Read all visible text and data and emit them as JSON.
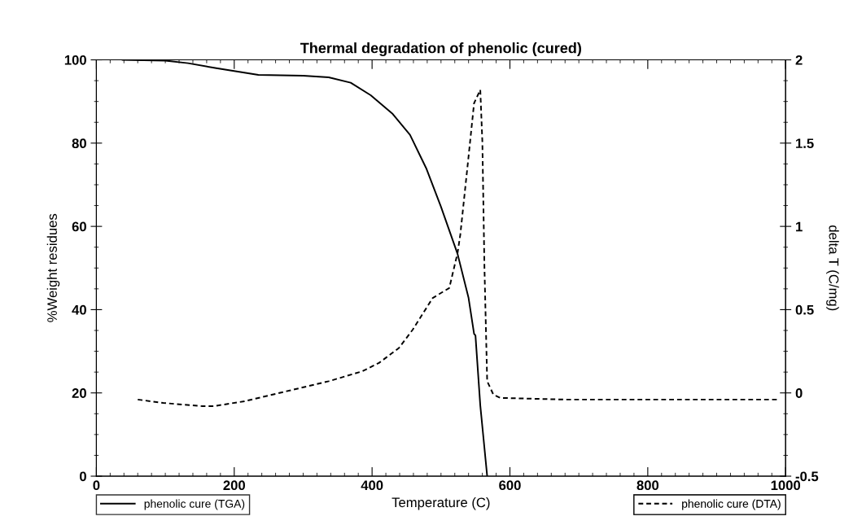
{
  "chart_data": {
    "type": "line",
    "title": "Thermal degradation of phenolic (cured)",
    "xlabel": "Temperature (C)",
    "ylabel": "%Weight residues",
    "y2label": "delta T (C/mg)",
    "xlim": [
      0,
      1000
    ],
    "xticks": [
      0,
      200,
      400,
      600,
      800,
      1000
    ],
    "ylim": [
      0,
      100
    ],
    "yticks": [
      0,
      20,
      40,
      60,
      80,
      100
    ],
    "y2lim": [
      -0.5,
      2
    ],
    "y2ticks": [
      -0.5,
      0,
      0.5,
      1,
      1.5,
      2
    ],
    "grid": false,
    "legend": "bottom",
    "series": [
      {
        "name": "phenolic cure (TGA)",
        "color": "#000000",
        "line_style": "solid",
        "x": [
          38,
          100,
          133,
          174,
          235,
          300,
          337,
          369,
          398,
          430,
          455,
          479,
          500,
          524,
          540,
          548,
          550,
          557,
          567
        ],
        "values": [
          100,
          99.8,
          99.2,
          98,
          96.4,
          96.2,
          95.8,
          94.5,
          91.5,
          87,
          82,
          73.8,
          64.7,
          53.4,
          42.8,
          34.2,
          33.8,
          17,
          0
        ]
      },
      {
        "name": "phenolic cure (DTA)",
        "color": "#000000",
        "line_style": "dashed",
        "axis": "y2",
        "x": [
          60,
          97,
          154,
          170,
          215,
          276,
          337,
          386,
          410,
          439,
          459,
          488,
          512,
          524,
          528,
          540,
          548,
          557,
          560,
          563,
          567,
          576,
          586,
          680,
          836,
          989
        ],
        "values": [
          -0.04,
          -0.06,
          -0.08,
          -0.08,
          -0.05,
          0.01,
          0.07,
          0.13,
          0.18,
          0.27,
          0.38,
          0.57,
          0.63,
          0.84,
          0.95,
          1.42,
          1.74,
          1.82,
          1.51,
          0.76,
          0.07,
          -0.01,
          -0.03,
          -0.04,
          -0.04,
          -0.04
        ]
      }
    ]
  }
}
